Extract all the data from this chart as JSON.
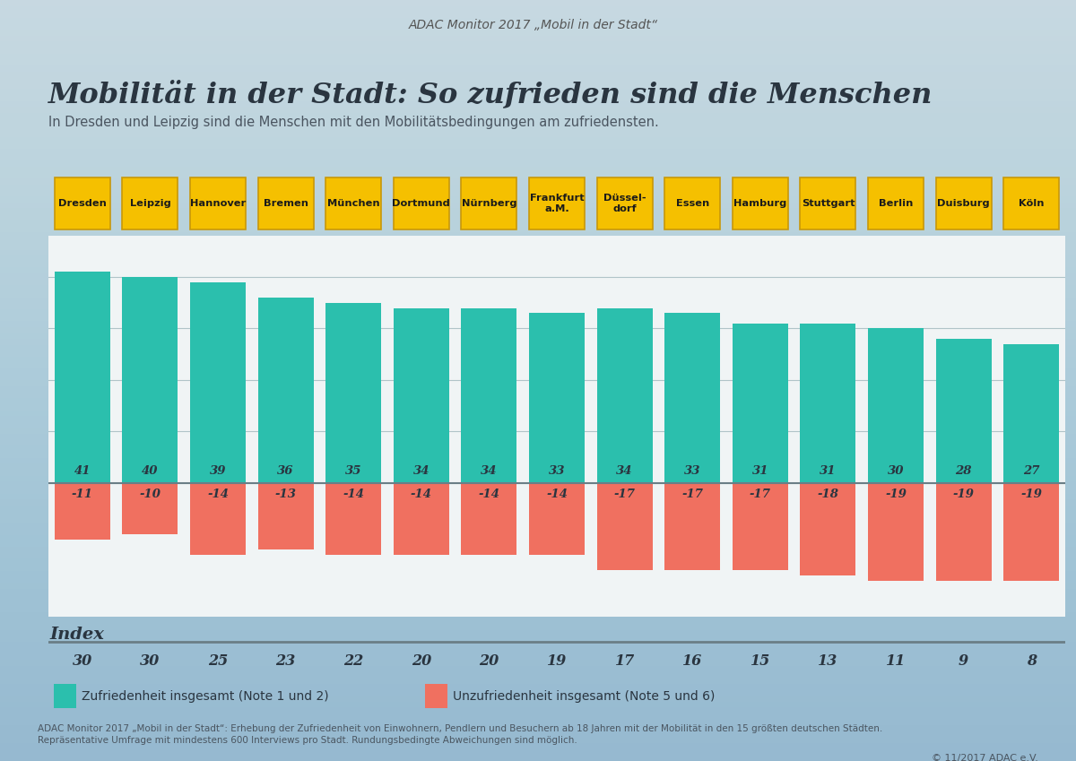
{
  "cities": [
    "Dresden",
    "Leipzig",
    "Hannover",
    "Bremen",
    "München",
    "Dortmund",
    "Nürnberg",
    "Frankfurt\na.M.",
    "Düssel-\ndorf",
    "Essen",
    "Hamburg",
    "Stuttgart",
    "Berlin",
    "Duisburg",
    "Köln"
  ],
  "satisfaction": [
    41,
    40,
    39,
    36,
    35,
    34,
    34,
    33,
    34,
    33,
    31,
    31,
    30,
    28,
    27
  ],
  "dissatisfaction": [
    -11,
    -10,
    -14,
    -13,
    -14,
    -14,
    -14,
    -14,
    -17,
    -17,
    -17,
    -18,
    -19,
    -19,
    -19
  ],
  "index": [
    30,
    30,
    25,
    23,
    22,
    20,
    20,
    19,
    17,
    16,
    15,
    13,
    11,
    9,
    8
  ],
  "teal_color": "#2BBFAD",
  "orange_color": "#F07060",
  "yellow_color": "#F5C000",
  "yellow_border": "#C8980A",
  "background_top": "#D8E4E8",
  "background_bottom": "#A8BCC4",
  "chart_bg": "#FFFFFF",
  "title": "Mobilität in der Stadt: So zufrieden sind die Menschen",
  "subtitle": "In Dresden und Leipzig sind die Menschen mit den Mobilitätsbedingungen am zufriedensten.",
  "header_text": "ADAC Monitor 2017 „Mobil in der Stadt“",
  "legend_teal": "Zufriedenheit insgesamt (Note 1 und 2)",
  "legend_orange": "Unzufriedenheit insgesamt (Note 5 und 6)",
  "index_label": "Index",
  "footer_line1": "ADAC Monitor 2017 „Mobil in der Stadt“: Erhebung der Zufriedenheit von Einwohnern, Pendlern und Besuchern ab 18 Jahren mit der Mobilität in den 15 größten deutschen Städten.",
  "footer_line2": "Repräsentative Umfrage mit mindestens 600 Interviews pro Stadt. Rundungsbedingte Abweichungen sind möglich.",
  "copyright": "© 11/2017 ADAC e.V.",
  "grid_color": "#B0C4C8",
  "separator_color": "#6A7E86",
  "text_dark": "#2A3540",
  "text_mid": "#4A5560"
}
